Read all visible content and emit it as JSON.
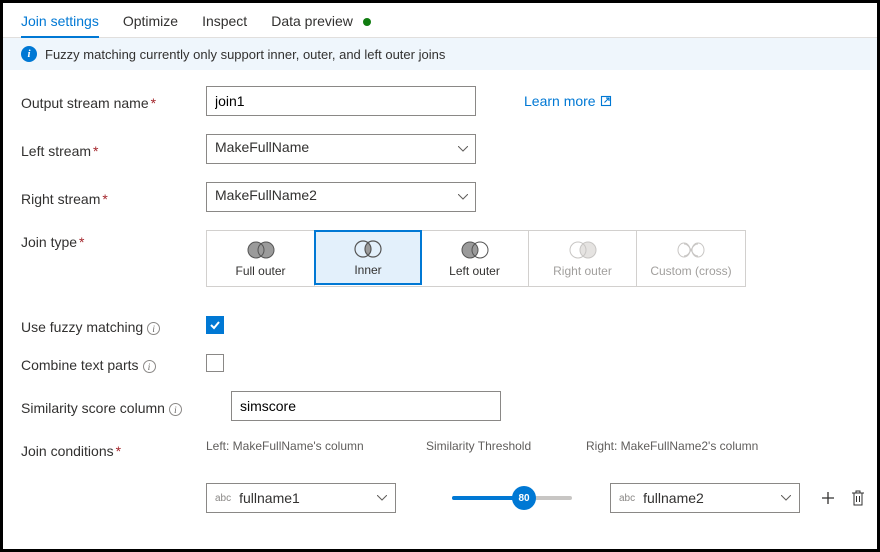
{
  "tabs": {
    "join_settings": "Join settings",
    "optimize": "Optimize",
    "inspect": "Inspect",
    "data_preview": "Data preview"
  },
  "banner": {
    "text": "Fuzzy matching currently only support inner, outer, and left outer joins"
  },
  "labels": {
    "output_stream_name": "Output stream name",
    "left_stream": "Left stream",
    "right_stream": "Right stream",
    "join_type": "Join type",
    "use_fuzzy": "Use fuzzy matching",
    "combine_text": "Combine text parts",
    "similarity_col": "Similarity score column",
    "join_conditions": "Join conditions"
  },
  "values": {
    "output_stream_name": "join1",
    "left_stream": "MakeFullName",
    "right_stream": "MakeFullName2",
    "similarity_col": "simscore",
    "use_fuzzy_checked": true,
    "combine_text_checked": false
  },
  "learn_more": "Learn more",
  "join_types": {
    "full_outer": "Full outer",
    "inner": "Inner",
    "left_outer": "Left outer",
    "right_outer": "Right outer",
    "custom": "Custom (cross)",
    "selected": "inner"
  },
  "conditions": {
    "header_left": "Left: MakeFullName's column",
    "header_mid": "Similarity Threshold",
    "header_right": "Right: MakeFullName2's column",
    "left_col": "fullname1",
    "right_col": "fullname2",
    "threshold": "80",
    "threshold_pct": 60
  },
  "colors": {
    "primary": "#0078d4",
    "banner_bg": "#eff6fc"
  }
}
